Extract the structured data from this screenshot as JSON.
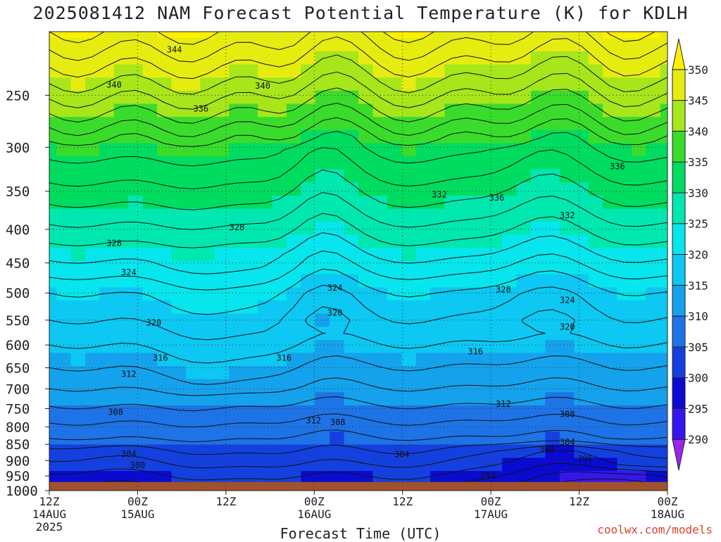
{
  "title": "2025081412 NAM Forecast Potential Temperature (K) for KDLH",
  "credit": "coolwx.com/models",
  "chart_data": {
    "type": "heatmap",
    "title": "2025081412 NAM Forecast Potential Temperature (K) for KDLH",
    "xlabel": "Forecast Time (UTC)",
    "ylabel": "",
    "x_range_hours": [
      0,
      84
    ],
    "y_range_hpa": [
      200,
      1000
    ],
    "y_scale": "log-pressure (inverted)",
    "grid": true,
    "x_ticks": [
      {
        "h": 0,
        "l1": "12Z",
        "l2": "14AUG",
        "l3": "2025"
      },
      {
        "h": 12,
        "l1": "00Z",
        "l2": "15AUG",
        "l3": ""
      },
      {
        "h": 24,
        "l1": "12Z",
        "l2": "",
        "l3": ""
      },
      {
        "h": 36,
        "l1": "00Z",
        "l2": "16AUG",
        "l3": ""
      },
      {
        "h": 48,
        "l1": "12Z",
        "l2": "",
        "l3": ""
      },
      {
        "h": 60,
        "l1": "00Z",
        "l2": "17AUG",
        "l3": ""
      },
      {
        "h": 72,
        "l1": "12Z",
        "l2": "",
        "l3": ""
      },
      {
        "h": 84,
        "l1": "00Z",
        "l2": "18AUG",
        "l3": ""
      }
    ],
    "y_ticks": [
      250,
      300,
      350,
      400,
      450,
      500,
      550,
      600,
      650,
      700,
      750,
      800,
      850,
      900,
      950,
      1000
    ],
    "colorbar": {
      "min": 285,
      "max": 355,
      "labels": [
        290,
        295,
        300,
        305,
        310,
        315,
        320,
        325,
        330,
        335,
        340,
        345,
        350
      ],
      "bins": [
        {
          "lo": 285,
          "hi": 290,
          "color": "#9b24ef"
        },
        {
          "lo": 290,
          "hi": 295,
          "color": "#3616ef"
        },
        {
          "lo": 295,
          "hi": 300,
          "color": "#0a0ad2"
        },
        {
          "lo": 300,
          "hi": 305,
          "color": "#1440e0"
        },
        {
          "lo": 305,
          "hi": 310,
          "color": "#1e73e6"
        },
        {
          "lo": 310,
          "hi": 315,
          "color": "#15a2ec"
        },
        {
          "lo": 315,
          "hi": 320,
          "color": "#0cc8f2"
        },
        {
          "lo": 320,
          "hi": 325,
          "color": "#06e6ec"
        },
        {
          "lo": 325,
          "hi": 330,
          "color": "#00e8b0"
        },
        {
          "lo": 330,
          "hi": 335,
          "color": "#00dc60"
        },
        {
          "lo": 335,
          "hi": 340,
          "color": "#3adc2c"
        },
        {
          "lo": 340,
          "hi": 345,
          "color": "#a6e61a"
        },
        {
          "lo": 345,
          "hi": 350,
          "color": "#e6ec10"
        },
        {
          "lo": 350,
          "hi": 355,
          "color": "#fff000"
        }
      ]
    },
    "ground": {
      "from_hpa": 970,
      "color": "#a0522d"
    },
    "contour_labels": [
      {
        "v": 344,
        "h": 17.0,
        "p": 213
      },
      {
        "v": 340,
        "h": 8.8,
        "p": 241
      },
      {
        "v": 340,
        "h": 29.0,
        "p": 242
      },
      {
        "v": 336,
        "h": 20.6,
        "p": 262
      },
      {
        "v": 336,
        "h": 60.8,
        "p": 358
      },
      {
        "v": 336,
        "h": 77.2,
        "p": 321
      },
      {
        "v": 332,
        "h": 53.0,
        "p": 354
      },
      {
        "v": 332,
        "h": 70.4,
        "p": 381
      },
      {
        "v": 328,
        "h": 8.8,
        "p": 420
      },
      {
        "v": 328,
        "h": 25.5,
        "p": 397
      },
      {
        "v": 328,
        "h": 61.7,
        "p": 494
      },
      {
        "v": 324,
        "h": 10.8,
        "p": 465
      },
      {
        "v": 324,
        "h": 38.8,
        "p": 491
      },
      {
        "v": 324,
        "h": 70.4,
        "p": 513
      },
      {
        "v": 320,
        "h": 14.2,
        "p": 555
      },
      {
        "v": 320,
        "h": 38.8,
        "p": 536
      },
      {
        "v": 320,
        "h": 70.4,
        "p": 563
      },
      {
        "v": 316,
        "h": 15.1,
        "p": 628
      },
      {
        "v": 316,
        "h": 31.9,
        "p": 628
      },
      {
        "v": 316,
        "h": 57.9,
        "p": 614
      },
      {
        "v": 312,
        "h": 10.8,
        "p": 665
      },
      {
        "v": 312,
        "h": 61.7,
        "p": 738
      },
      {
        "v": 312,
        "h": 35.9,
        "p": 782
      },
      {
        "v": 308,
        "h": 9.0,
        "p": 759
      },
      {
        "v": 308,
        "h": 39.2,
        "p": 787
      },
      {
        "v": 308,
        "h": 70.4,
        "p": 765
      },
      {
        "v": 304,
        "h": 10.8,
        "p": 880
      },
      {
        "v": 304,
        "h": 47.9,
        "p": 881
      },
      {
        "v": 304,
        "h": 70.4,
        "p": 843
      },
      {
        "v": 300,
        "h": 12.0,
        "p": 915
      },
      {
        "v": 300,
        "h": 67.6,
        "p": 867
      },
      {
        "v": 296,
        "h": 72.8,
        "p": 895
      },
      {
        "v": 292,
        "h": 59.6,
        "p": 948
      }
    ]
  }
}
